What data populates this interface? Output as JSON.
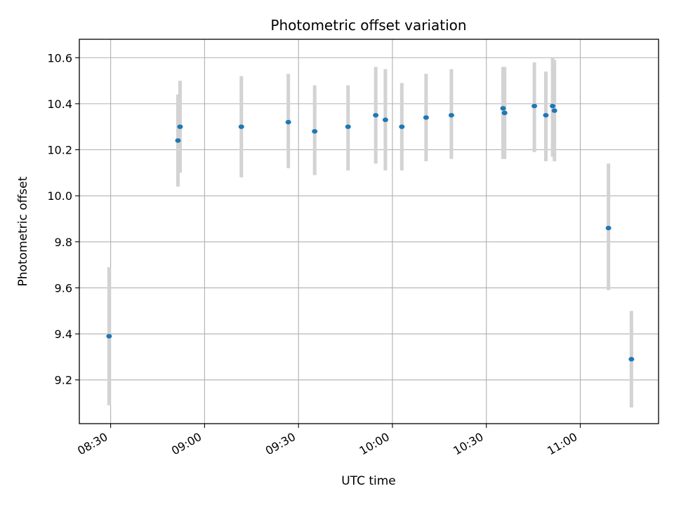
{
  "chart_data": {
    "type": "scatter",
    "title": "Photometric offset variation",
    "xlabel": "UTC time",
    "ylabel": "Photometric offset",
    "xlim": [
      "08:20",
      "11:25"
    ],
    "ylim": [
      9.01,
      10.68
    ],
    "x_ticks": [
      "08:30",
      "09:00",
      "09:30",
      "10:00",
      "10:30",
      "11:00"
    ],
    "y_ticks": [
      "9.2",
      "9.4",
      "9.6",
      "9.8",
      "10.0",
      "10.2",
      "10.4",
      "10.6"
    ],
    "grid": true,
    "marker_color": "#1f77b4",
    "errorbar_color": "#d3d3d3",
    "points": [
      {
        "x": "08:29:30",
        "y": 9.39,
        "ylow": 9.09,
        "yhigh": 9.69
      },
      {
        "x": "08:51:30",
        "y": 10.24,
        "ylow": 10.04,
        "yhigh": 10.44
      },
      {
        "x": "08:52:10",
        "y": 10.3,
        "ylow": 10.1,
        "yhigh": 10.5
      },
      {
        "x": "09:11:45",
        "y": 10.3,
        "ylow": 10.08,
        "yhigh": 10.52
      },
      {
        "x": "09:26:45",
        "y": 10.32,
        "ylow": 10.12,
        "yhigh": 10.53
      },
      {
        "x": "09:35:10",
        "y": 10.28,
        "ylow": 10.09,
        "yhigh": 10.48
      },
      {
        "x": "09:45:50",
        "y": 10.3,
        "ylow": 10.11,
        "yhigh": 10.48
      },
      {
        "x": "09:54:40",
        "y": 10.35,
        "ylow": 10.14,
        "yhigh": 10.56
      },
      {
        "x": "09:57:45",
        "y": 10.33,
        "ylow": 10.11,
        "yhigh": 10.55
      },
      {
        "x": "10:03:00",
        "y": 10.3,
        "ylow": 10.11,
        "yhigh": 10.49
      },
      {
        "x": "10:10:45",
        "y": 10.34,
        "ylow": 10.15,
        "yhigh": 10.53
      },
      {
        "x": "10:18:50",
        "y": 10.35,
        "ylow": 10.16,
        "yhigh": 10.55
      },
      {
        "x": "10:35:20",
        "y": 10.38,
        "ylow": 10.16,
        "yhigh": 10.56
      },
      {
        "x": "10:35:50",
        "y": 10.36,
        "ylow": 10.16,
        "yhigh": 10.56
      },
      {
        "x": "10:45:20",
        "y": 10.39,
        "ylow": 10.19,
        "yhigh": 10.58
      },
      {
        "x": "10:49:00",
        "y": 10.35,
        "ylow": 10.15,
        "yhigh": 10.54
      },
      {
        "x": "10:51:10",
        "y": 10.39,
        "ylow": 10.17,
        "yhigh": 10.6
      },
      {
        "x": "10:51:45",
        "y": 10.37,
        "ylow": 10.15,
        "yhigh": 10.59
      },
      {
        "x": "11:09:00",
        "y": 9.86,
        "ylow": 9.59,
        "yhigh": 10.14
      },
      {
        "x": "11:16:20",
        "y": 9.29,
        "ylow": 9.08,
        "yhigh": 9.5
      }
    ]
  }
}
